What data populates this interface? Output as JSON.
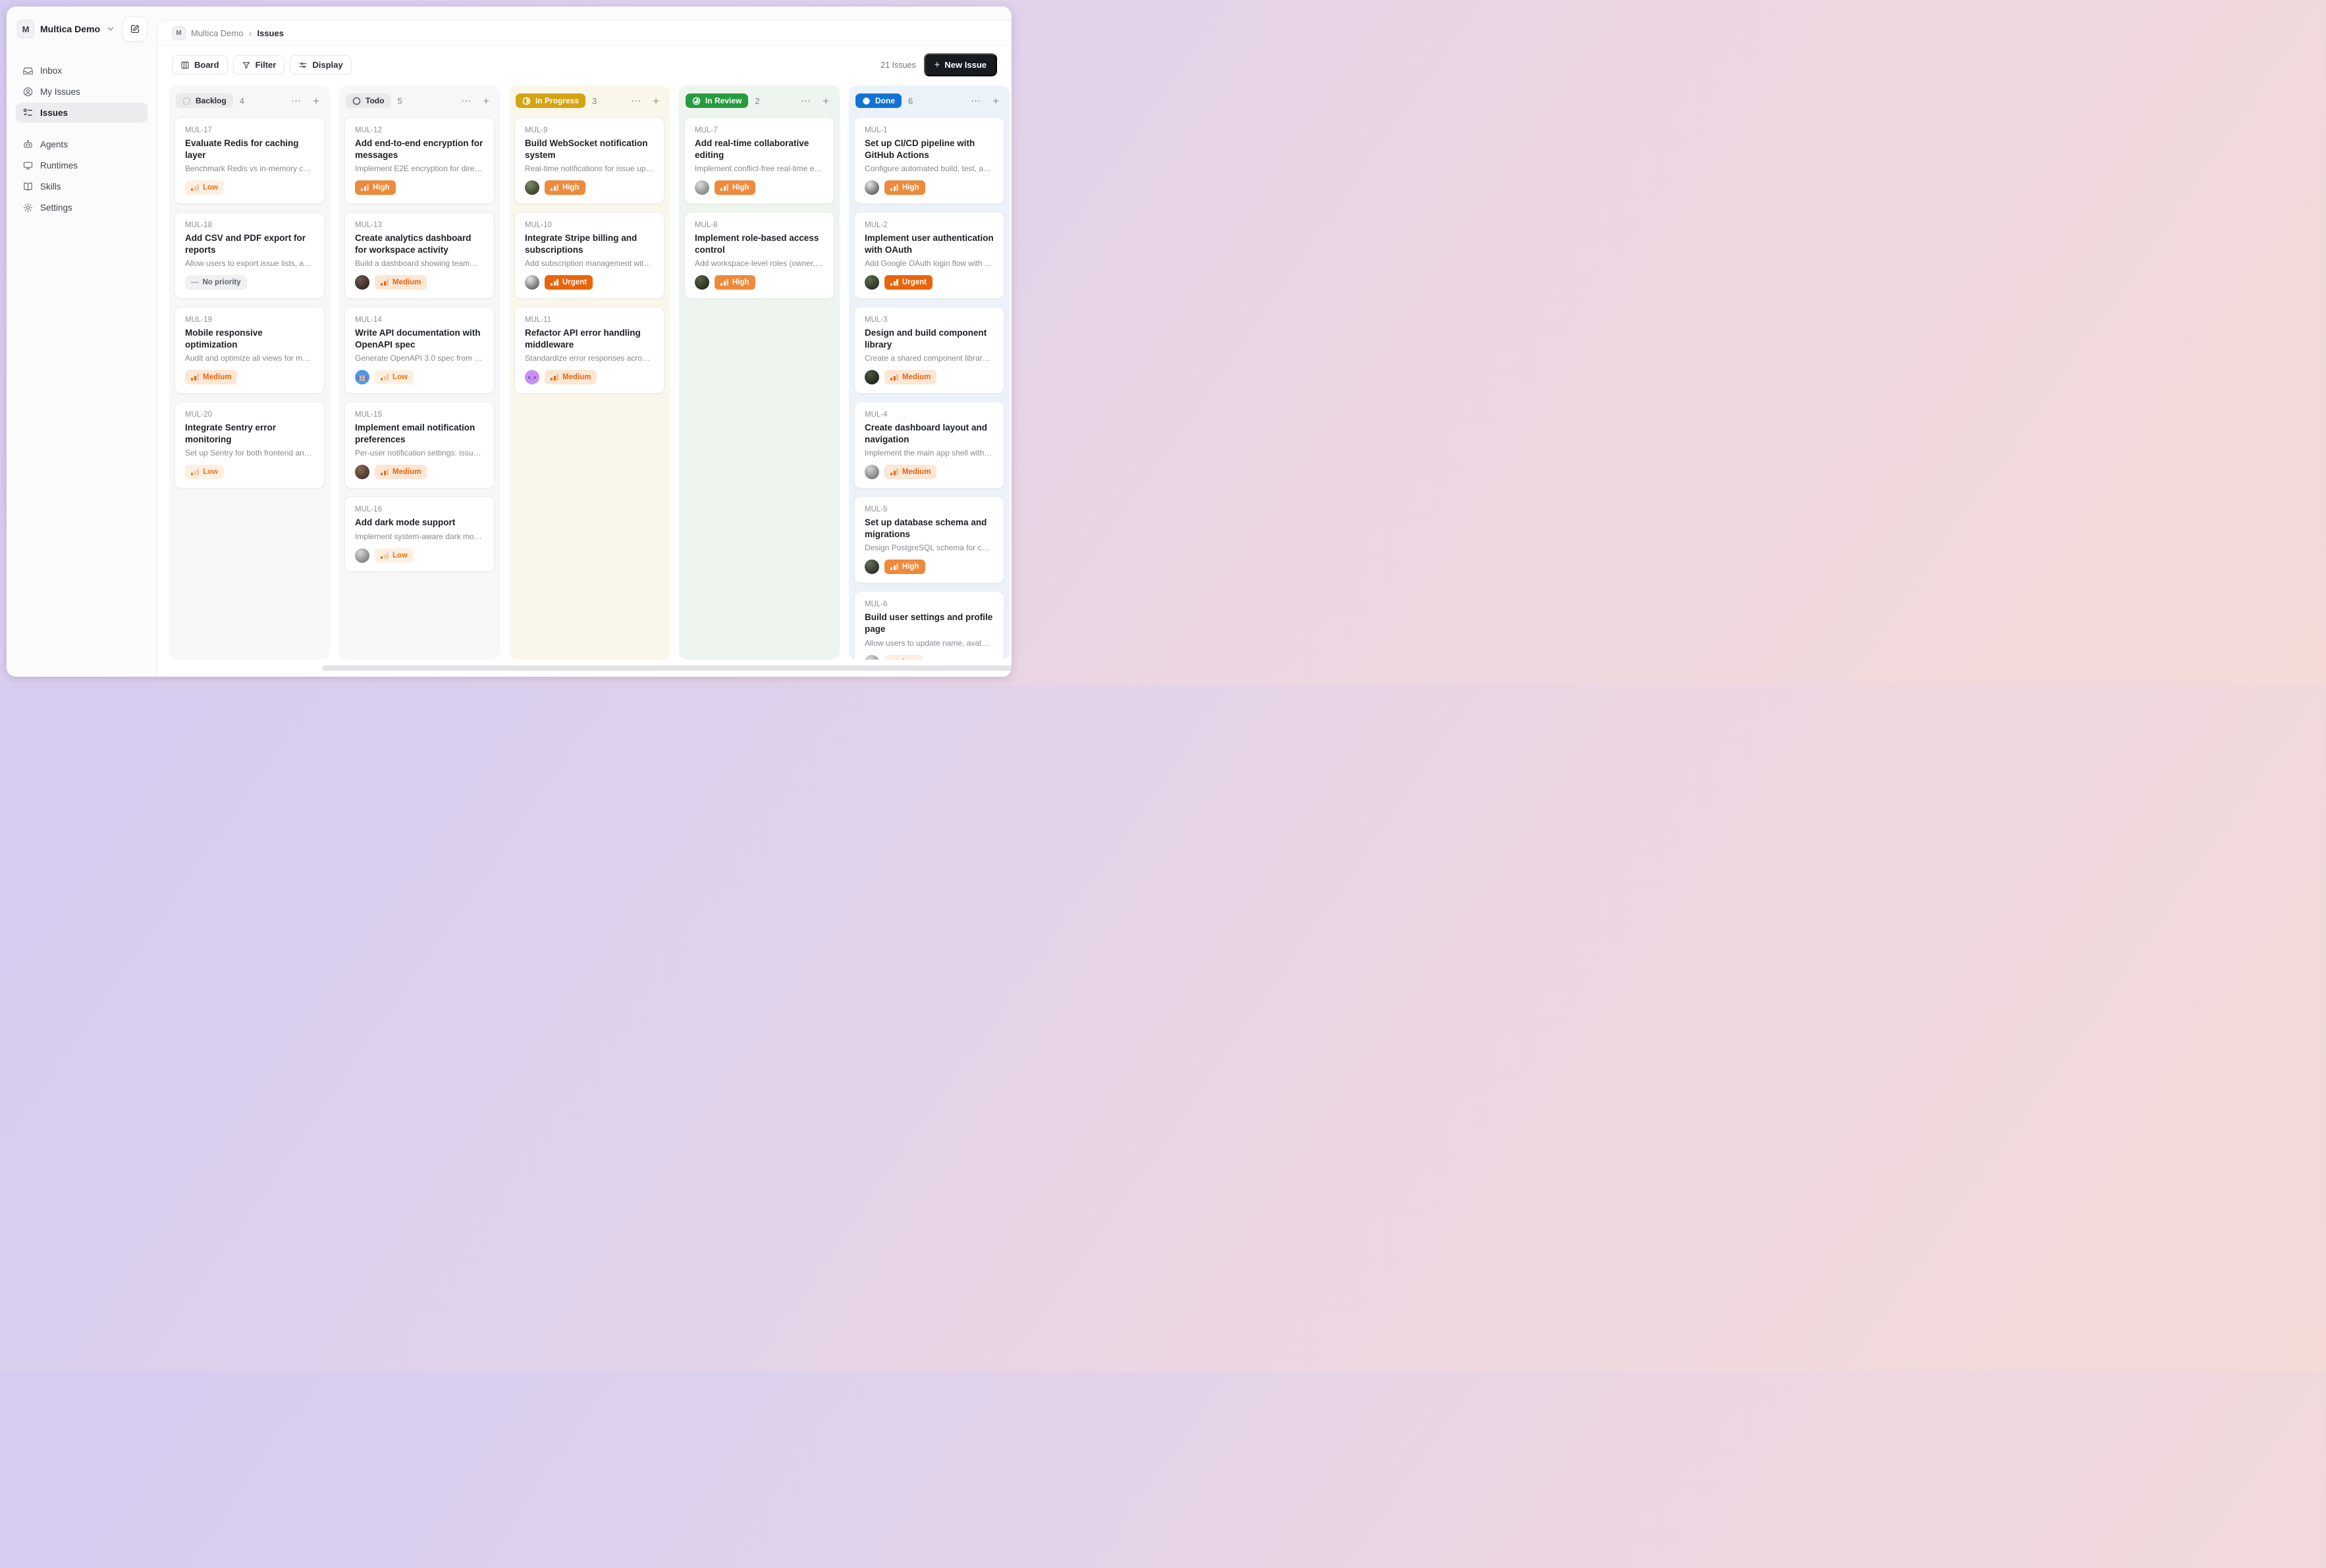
{
  "workspace": {
    "initial": "M",
    "name": "Multica Demo"
  },
  "sidebar": {
    "items": [
      {
        "icon": "inbox-icon",
        "label": "Inbox",
        "active": false,
        "group": 1
      },
      {
        "icon": "my-issues-icon",
        "label": "My Issues",
        "active": false,
        "group": 1
      },
      {
        "icon": "issues-checklist-icon",
        "label": "Issues",
        "active": true,
        "group": 1
      },
      {
        "icon": "robot-icon",
        "label": "Agents",
        "active": false,
        "group": 2
      },
      {
        "icon": "monitor-icon",
        "label": "Runtimes",
        "active": false,
        "group": 2
      },
      {
        "icon": "book-icon",
        "label": "Skills",
        "active": false,
        "group": 2
      },
      {
        "icon": "gear-icon",
        "label": "Settings",
        "active": false,
        "group": 2
      }
    ]
  },
  "breadcrumb": {
    "badge_initial": "M",
    "parent": "Multica Demo",
    "separator": "›",
    "current": "Issues"
  },
  "toolbar": {
    "board_label": "Board",
    "filter_label": "Filter",
    "display_label": "Display",
    "issues_count": "21 Issues",
    "new_issue_label": "New Issue",
    "new_issue_plus": "+"
  },
  "board": {
    "more_glyph": "⋯",
    "add_glyph": "+",
    "columns": [
      {
        "key": "backlog",
        "label": "Backlog",
        "count": "4",
        "variant": "neutral",
        "icon": "backlog-dashed-circle-icon",
        "accent": "#eaeaec",
        "bg": "#f7f7f8",
        "cards": [
          {
            "id": "MUL-17",
            "title": "Evaluate Redis for caching layer",
            "description": "Benchmark Redis vs in-memory cachin…",
            "priority": {
              "label": "Low",
              "level": "low"
            },
            "avatar": null
          },
          {
            "id": "MUL-18",
            "title": "Add CSV and PDF export for reports",
            "description": "Allow users to export issue lists, activity…",
            "priority": {
              "label": "No priority",
              "level": "none"
            },
            "avatar": null
          },
          {
            "id": "MUL-19",
            "title": "Mobile responsive optimization",
            "description": "Audit and optimize all views for mobile…",
            "priority": {
              "label": "Medium",
              "level": "medium"
            },
            "avatar": null
          },
          {
            "id": "MUL-20",
            "title": "Integrate Sentry error monitoring",
            "description": "Set up Sentry for both frontend and…",
            "priority": {
              "label": "Low",
              "level": "low"
            },
            "avatar": null
          }
        ]
      },
      {
        "key": "todo",
        "label": "Todo",
        "count": "5",
        "variant": "neutral",
        "icon": "todo-circle-icon",
        "accent": "#eaeaec",
        "bg": "#f7f7f8",
        "cards": [
          {
            "id": "MUL-12",
            "title": "Add end-to-end encryption for messages",
            "description": "Implement E2E encryption for direct…",
            "priority": {
              "label": "High",
              "level": "high"
            },
            "avatar": null
          },
          {
            "id": "MUL-13",
            "title": "Create analytics dashboard for workspace activity",
            "description": "Build a dashboard showing team…",
            "priority": {
              "label": "Medium",
              "level": "medium"
            },
            "avatar": {
              "name": "user-avatar",
              "c1": "#6e5850",
              "c2": "#221a16",
              "glyph": "",
              "glyph_color": ""
            }
          },
          {
            "id": "MUL-14",
            "title": "Write API documentation with OpenAPI spec",
            "description": "Generate OpenAPI 3.0 spec from handl…",
            "priority": {
              "label": "Low",
              "level": "low"
            },
            "avatar": {
              "name": "robot-avatar",
              "c1": "#4b96e8",
              "c2": "#4b96e8",
              "glyph": "🤖",
              "glyph_color": ""
            }
          },
          {
            "id": "MUL-15",
            "title": "Implement email notification preferences",
            "description": "Per-user notification settings: issue…",
            "priority": {
              "label": "Medium",
              "level": "medium"
            },
            "avatar": {
              "name": "user-avatar",
              "c1": "#8a6a52",
              "c2": "#33241c",
              "glyph": "",
              "glyph_color": ""
            }
          },
          {
            "id": "MUL-16",
            "title": "Add dark mode support",
            "description": "Implement system-aware dark mode…",
            "priority": {
              "label": "Low",
              "level": "low"
            },
            "avatar": {
              "name": "user-avatar",
              "c1": "#d9d9d9",
              "c2": "#636363",
              "glyph": "",
              "glyph_color": ""
            }
          }
        ]
      },
      {
        "key": "in-progress",
        "label": "In Progress",
        "count": "3",
        "variant": "solid",
        "icon": "in-progress-half-circle-icon",
        "accent": "#d4a312",
        "bg": "#faf6e9",
        "cards": [
          {
            "id": "MUL-9",
            "title": "Build WebSocket notification system",
            "description": "Real-time notifications for issue update…",
            "priority": {
              "label": "High",
              "level": "high"
            },
            "avatar": {
              "name": "user-avatar",
              "c1": "#7a8a62",
              "c2": "#232a1c",
              "glyph": "",
              "glyph_color": ""
            }
          },
          {
            "id": "MUL-10",
            "title": "Integrate Stripe billing and subscriptions",
            "description": "Add subscription management with…",
            "priority": {
              "label": "Urgent",
              "level": "urgent"
            },
            "avatar": {
              "name": "user-avatar",
              "c1": "#e8e8e8",
              "c2": "#3f3f41",
              "glyph": "",
              "glyph_color": ""
            }
          },
          {
            "id": "MUL-11",
            "title": "Refactor API error handling middleware",
            "description": "Standardize error responses across all…",
            "priority": {
              "label": "Medium",
              "level": "medium"
            },
            "avatar": {
              "name": "dizzy-face-avatar",
              "c1": "#c98ff6",
              "c2": "#c98ff6",
              "glyph": "×_×",
              "glyph_color": "#4a2f73"
            }
          }
        ]
      },
      {
        "key": "in-review",
        "label": "In Review",
        "count": "2",
        "variant": "solid",
        "icon": "in-review-clock-circle-icon",
        "accent": "#279b3f",
        "bg": "#eef4ee",
        "cards": [
          {
            "id": "MUL-7",
            "title": "Add real-time collaborative editing",
            "description": "Implement conflict-free real-time editin…",
            "priority": {
              "label": "High",
              "level": "high"
            },
            "avatar": {
              "name": "user-avatar",
              "c1": "#dcdcdc",
              "c2": "#6b6b6b",
              "glyph": "",
              "glyph_color": ""
            }
          },
          {
            "id": "MUL-8",
            "title": "Implement role-based access control",
            "description": "Add workspace-level roles (owner,…",
            "priority": {
              "label": "High",
              "level": "high"
            },
            "avatar": {
              "name": "user-avatar",
              "c1": "#56644a",
              "c2": "#171b14",
              "glyph": "",
              "glyph_color": ""
            }
          }
        ]
      },
      {
        "key": "done",
        "label": "Done",
        "count": "6",
        "variant": "solid",
        "icon": "done-filled-circle-icon",
        "accent": "#1273d6",
        "bg": "#ecf2f9",
        "cards": [
          {
            "id": "MUL-1",
            "title": "Set up CI/CD pipeline with GitHub Actions",
            "description": "Configure automated build, test, and…",
            "priority": {
              "label": "High",
              "level": "high"
            },
            "avatar": {
              "name": "user-avatar",
              "c1": "#e6e6e4",
              "c2": "#35393c",
              "glyph": "",
              "glyph_color": ""
            }
          },
          {
            "id": "MUL-2",
            "title": "Implement user authentication with OAuth",
            "description": "Add Google OAuth login flow with JWT…",
            "priority": {
              "label": "Urgent",
              "level": "urgent"
            },
            "avatar": {
              "name": "user-avatar",
              "c1": "#5d6b4f",
              "c2": "#1b2016",
              "glyph": "",
              "glyph_color": ""
            }
          },
          {
            "id": "MUL-3",
            "title": "Design and build component library",
            "description": "Create a shared component library base…",
            "priority": {
              "label": "Medium",
              "level": "medium"
            },
            "avatar": {
              "name": "user-avatar",
              "c1": "#4a5a3e",
              "c2": "#14100e",
              "glyph": "",
              "glyph_color": ""
            }
          },
          {
            "id": "MUL-4",
            "title": "Create dashboard layout and navigation",
            "description": "Implement the main app shell with…",
            "priority": {
              "label": "Medium",
              "level": "medium"
            },
            "avatar": {
              "name": "user-avatar",
              "c1": "#d6d6d6",
              "c2": "#5f5f5f",
              "glyph": "",
              "glyph_color": ""
            }
          },
          {
            "id": "MUL-5",
            "title": "Set up database schema and migrations",
            "description": "Design PostgreSQL schema for core…",
            "priority": {
              "label": "High",
              "level": "high"
            },
            "avatar": {
              "name": "user-avatar",
              "c1": "#63705a",
              "c2": "#1c1a16",
              "glyph": "",
              "glyph_color": ""
            }
          },
          {
            "id": "MUL-6",
            "title": "Build user settings and profile page",
            "description": "Allow users to update name, avatar,…",
            "priority": {
              "label": "Low",
              "level": "low"
            },
            "avatar": {
              "name": "user-avatar",
              "c1": "#dadada",
              "c2": "#6e6e6e",
              "glyph": "",
              "glyph_color": ""
            }
          }
        ]
      }
    ]
  }
}
